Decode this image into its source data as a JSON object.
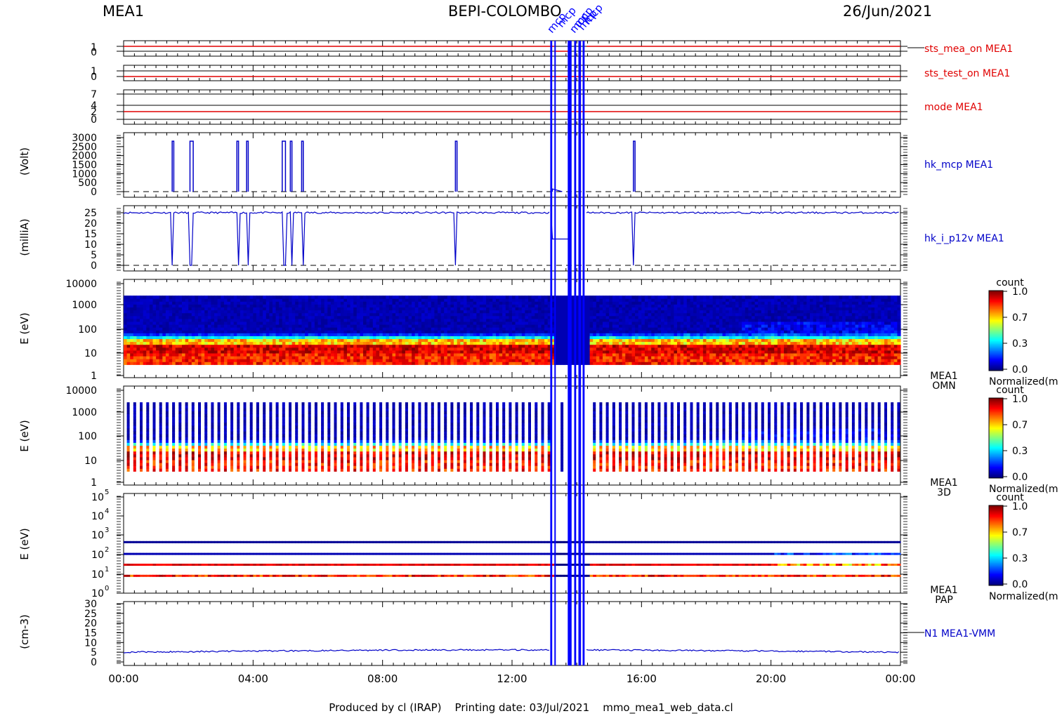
{
  "header": {
    "left": "MEA1",
    "center": "BEPI-COLOMBO",
    "right": "26/Jun/2021"
  },
  "footer": {
    "text": "Produced by cl (IRAP)    Printing date: 03/Jul/2021    mmo_mea1_web_data.cl"
  },
  "colors": {
    "status_line": "#e00000",
    "data_line": "#0000c8",
    "mode_bar": "#0000ff"
  },
  "chart_data": [
    {
      "id": "sts_mea_on",
      "type": "line",
      "series": [
        {
          "name": "sts_mea_on MEA1",
          "value": 1
        }
      ],
      "yticks": [
        "1",
        "0"
      ],
      "ylim": [
        0,
        1
      ],
      "ylabel": ""
    },
    {
      "id": "sts_test_on",
      "type": "line",
      "series": [
        {
          "name": "sts_test_on MEA1",
          "value": 0
        }
      ],
      "yticks": [
        "1",
        "0"
      ],
      "ylim": [
        0,
        1
      ],
      "ylabel": ""
    },
    {
      "id": "mode",
      "type": "line",
      "series": [
        {
          "name": "mode MEA1",
          "value": 2
        }
      ],
      "yticks": [
        "7",
        "4",
        "2",
        "0"
      ],
      "ylim": [
        0,
        7
      ],
      "ylabel": ""
    },
    {
      "id": "hk_mcp",
      "type": "line",
      "series": [
        {
          "name": "hk_mcp MEA1",
          "baseline": 0,
          "pulse_value": 2800,
          "pulses_hours": [
            [
              1.5,
              1.55
            ],
            [
              2.05,
              2.15
            ],
            [
              3.5,
              3.55
            ],
            [
              3.8,
              3.85
            ],
            [
              4.9,
              5.0
            ],
            [
              5.15,
              5.2
            ],
            [
              5.5,
              5.55
            ],
            [
              10.25,
              10.3
            ],
            [
              15.75,
              15.8
            ]
          ]
        }
      ],
      "yticks": [
        "3000",
        "2500",
        "2000",
        "1500",
        "1000",
        "500",
        "0"
      ],
      "ylim": [
        -100,
        3100
      ],
      "ylabel": "(Volt)"
    },
    {
      "id": "hk_i_p12v",
      "type": "line",
      "series": [
        {
          "name": "hk_i_p12v MEA1",
          "baseline": 25,
          "dropout_value": 0,
          "gap_value": 12.5,
          "dropouts_hours": [
            [
              1.5,
              1.55
            ],
            [
              2.05,
              2.15
            ],
            [
              3.5,
              3.55
            ],
            [
              3.8,
              3.85
            ],
            [
              4.9,
              5.0
            ],
            [
              5.15,
              5.2
            ],
            [
              5.5,
              5.55
            ],
            [
              10.25,
              10.3
            ],
            [
              15.75,
              15.8
            ]
          ]
        }
      ],
      "yticks": [
        "25",
        "20",
        "15",
        "10",
        "5",
        "0"
      ],
      "ylim": [
        -1,
        27
      ],
      "ylabel": "(milliA)"
    },
    {
      "id": "omn",
      "type": "heatmap",
      "label_top": "MEA1",
      "label_bottom": "OMN",
      "yticks": [
        "10000",
        "1000",
        "100",
        "10",
        "1"
      ],
      "ylabel": "E (eV)",
      "energy_range": [
        3,
        3000
      ],
      "colorbar": {
        "title": "count",
        "ticks": [
          "1.0",
          "0.7",
          "0.3",
          "0.0"
        ],
        "label": "Normalized(m"
      }
    },
    {
      "id": "3d",
      "type": "heatmap",
      "label_top": "MEA1",
      "label_bottom": "3D",
      "yticks": [
        "10000",
        "1000",
        "100",
        "10",
        "1"
      ],
      "ylabel": "E (eV)",
      "energy_range": [
        3,
        3000
      ],
      "colorbar": {
        "title": "count",
        "ticks": [
          "1.0",
          "0.7",
          "0.3",
          "0.0"
        ],
        "label": "Normalized(m"
      }
    },
    {
      "id": "pap",
      "type": "heatmap",
      "label_top": "MEA1",
      "label_bottom": "PAP",
      "yticks": [
        "10",
        "10",
        "10",
        "10",
        "10",
        "10"
      ],
      "ytick_exponents": [
        "5",
        "4",
        "3",
        "2",
        "1",
        "0"
      ],
      "ylabel": "E (eV)",
      "band_energies": [
        450,
        110,
        30,
        8
      ],
      "colorbar": {
        "title": "count",
        "ticks": [
          "1.0",
          "0.7",
          "0.3",
          "0.0"
        ],
        "label": "Normalized(m"
      }
    },
    {
      "id": "n1",
      "type": "line",
      "series": [
        {
          "name": "N1 MEA1-VMM",
          "mean": 6
        }
      ],
      "yticks": [
        "30",
        "25",
        "20",
        "15",
        "10",
        "5",
        "0"
      ],
      "ylim": [
        -1,
        31
      ],
      "ylabel": "(cm-3)"
    }
  ],
  "xaxis": {
    "ticks": [
      "00:00",
      "04:00",
      "08:00",
      "12:00",
      "16:00",
      "20:00",
      "00:00"
    ],
    "range_hours": [
      0,
      24
    ]
  },
  "mode_marker": {
    "text": "mcp",
    "gap_hours": [
      13.3,
      14.3
    ]
  }
}
